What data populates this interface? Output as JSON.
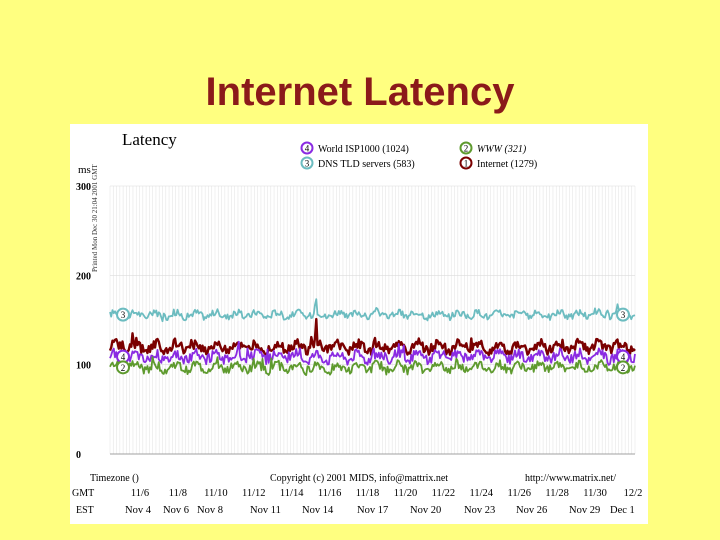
{
  "slide": {
    "title": "Internet Latency"
  },
  "chart_data": {
    "type": "line",
    "title": "Latency",
    "ylabel": "ms",
    "ylim": [
      0,
      300
    ],
    "y_ticks": [
      {
        "v": 300,
        "label": "300"
      },
      {
        "v": 200,
        "label": "200"
      },
      {
        "v": 100,
        "label": "100"
      },
      {
        "v": 0,
        "label": "0"
      }
    ],
    "x_range_days": [
      4,
      30
    ],
    "side_label": "Printed Mon Dec 30 21:04 2001 GMT",
    "gmt_label": "GMT",
    "est_label": "EST",
    "gmt_ticks": [
      "11/6",
      "11/8",
      "11/10",
      "11/12",
      "11/14",
      "11/16",
      "11/18",
      "11/20",
      "11/22",
      "11/24",
      "11/26",
      "11/28",
      "11/30",
      "12/2"
    ],
    "est_ticks": [
      "Nov 4",
      "Nov 6",
      "Nov 8",
      "Nov 11",
      "Nov 14",
      "Nov 17",
      "Nov 20",
      "Nov 23",
      "Nov 26",
      "Nov 29",
      "Dec 1"
    ],
    "footer": {
      "timezone": "Timezone ()",
      "copyright": "Copyright (c) 2001 MIDS, info@mattrix.net",
      "url": "http://www.matrix.net/"
    },
    "series": [
      {
        "key": "3",
        "name": "DNS TLD servers (583)",
        "color": "#6cbcc0",
        "baseline": 156,
        "amp": 3.5,
        "spikes": [
          [
            14.2,
            22
          ]
        ]
      },
      {
        "key": "1",
        "name": "Internet (1279)",
        "color": "#7a0000",
        "baseline": 120,
        "amp": 5,
        "spikes": [
          [
            14.2,
            28
          ]
        ]
      },
      {
        "key": "4",
        "name": "World ISP1000 (1024)",
        "color": "#8a2be2",
        "baseline": 109,
        "amp": 5,
        "spikes": []
      },
      {
        "key": "2",
        "name": "WWW (321)",
        "color": "#5e9a2e",
        "baseline": 97,
        "amp": 4.5,
        "spikes": []
      }
    ],
    "legend": [
      {
        "key": "4",
        "text": "World ISP1000 (1024)",
        "color": "#8a2be2"
      },
      {
        "key": "3",
        "text": "DNS TLD servers (583)",
        "color": "#6cbcc0"
      },
      {
        "key": "2",
        "text": "WWW (321)",
        "color": "#5e9a2e"
      },
      {
        "key": "1",
        "text": "Internet (1279)",
        "color": "#7a0000"
      }
    ],
    "left_end_labels": [
      "3",
      "4",
      "2"
    ],
    "right_end_labels": [
      "3",
      "4",
      "2"
    ],
    "grid": true
  }
}
